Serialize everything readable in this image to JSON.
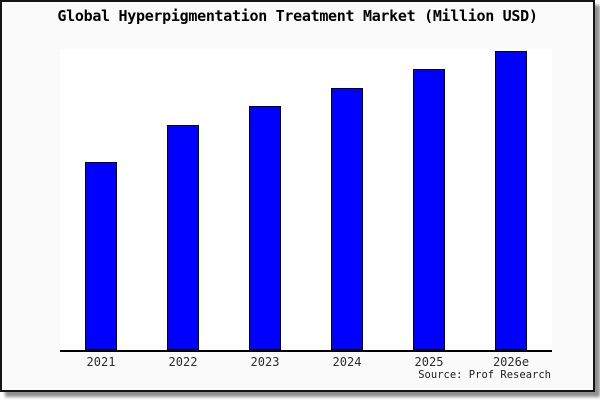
{
  "source": {
    "text": "Source: Prof Research"
  },
  "chart_data": {
    "type": "bar",
    "title": "Global Hyperpigmentation Treatment Market (Million USD)",
    "xlabel": "",
    "ylabel": "",
    "categories": [
      "2021",
      "2022",
      "2023",
      "2024",
      "2025",
      "2026e"
    ],
    "values": [
      62.5,
      74.8,
      81.1,
      87.0,
      93.4,
      99.3
    ],
    "value_note": "no y-axis tick labels or data labels are rendered in the image; values are bar heights as percent of plot-area height (relative scale, steadily rising series)",
    "series_name": "Global Hyperpigmentation Treatment Market",
    "bar_color": "#0000ff",
    "bar_outline_color": "#000000",
    "plot_background": "#ffffff",
    "figure_background": "#fafafa",
    "grid": false,
    "legend": false,
    "y_axis_visible": false,
    "x_axis_line": true
  }
}
